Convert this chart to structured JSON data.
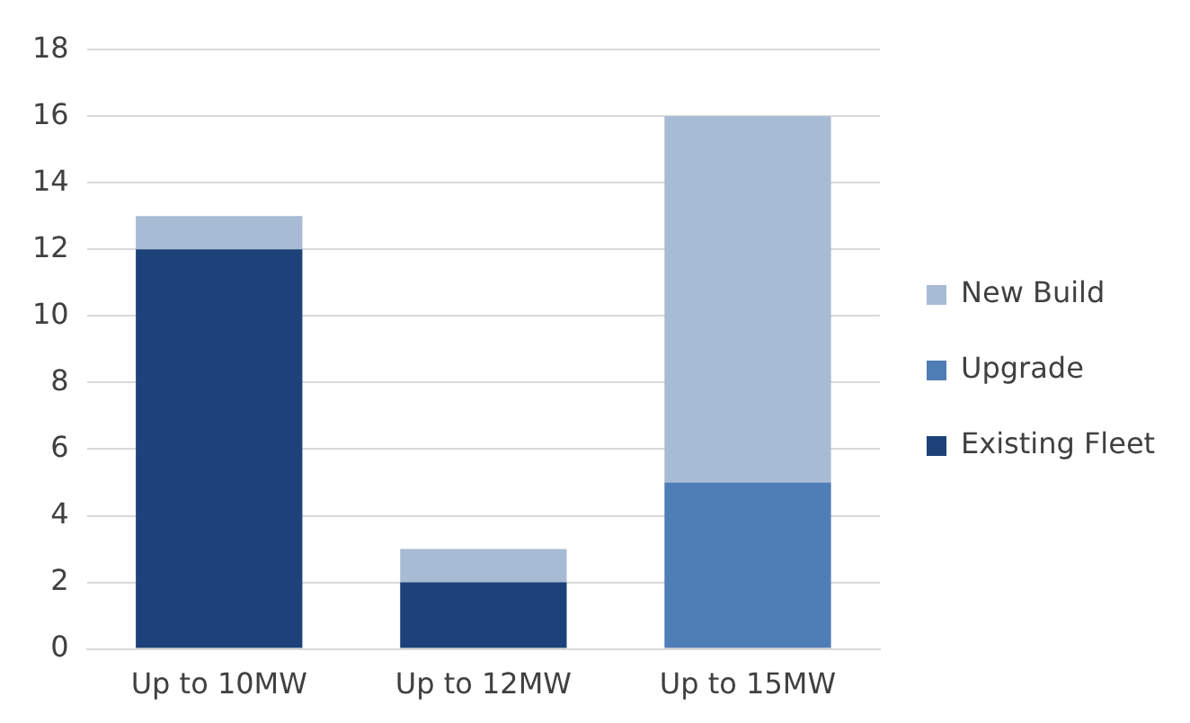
{
  "chart_data": {
    "type": "bar",
    "stacked": true,
    "categories": [
      "Up to 10MW",
      "Up to 12MW",
      "Up to 15MW"
    ],
    "series": [
      {
        "name": "Existing Fleet",
        "color": "#1c4279",
        "values": [
          12,
          2,
          0
        ]
      },
      {
        "name": "Upgrade",
        "color": "#4f7db5",
        "values": [
          0,
          0,
          5
        ]
      },
      {
        "name": "New Build",
        "color": "#a7bbd5",
        "values": [
          1,
          1,
          11
        ]
      }
    ],
    "ylim": [
      0,
      18
    ],
    "yticks": [
      0,
      2,
      4,
      6,
      8,
      10,
      12,
      14,
      16,
      18
    ],
    "grid": "y",
    "legend": "right"
  }
}
